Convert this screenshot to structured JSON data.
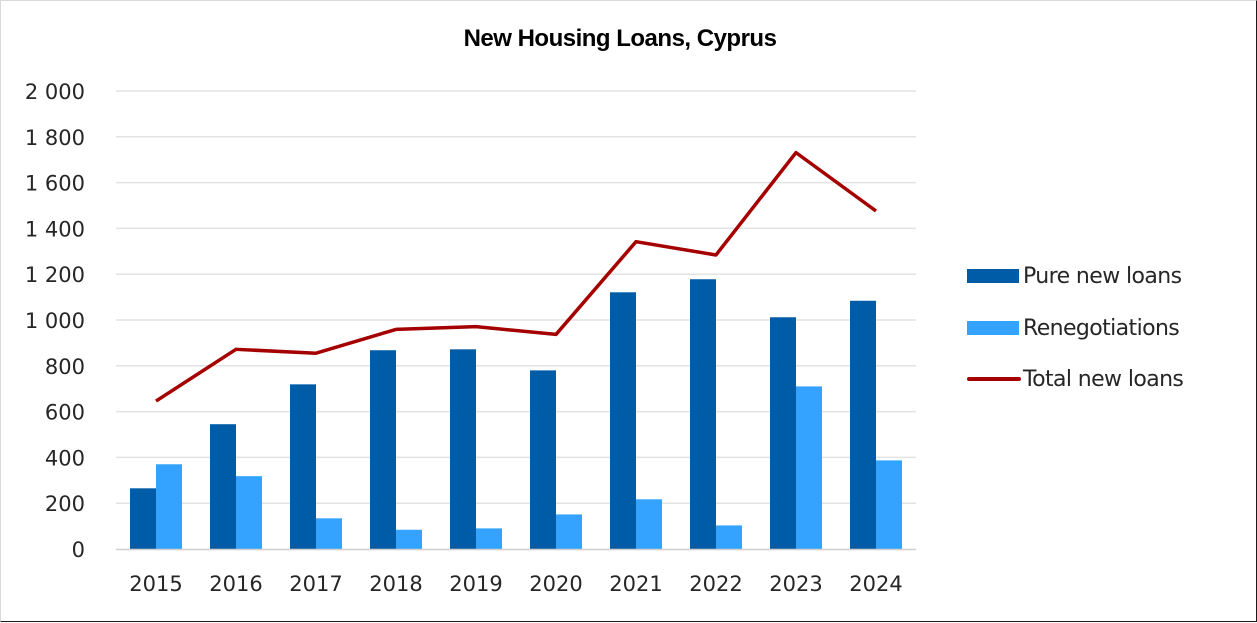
{
  "chart_data": {
    "type": "bar",
    "title": "New Housing Loans, Cyprus",
    "xlabel": "",
    "ylabel": "",
    "ylim": [
      0,
      2000
    ],
    "yticks": [
      0,
      200,
      400,
      600,
      800,
      1000,
      1200,
      1400,
      1600,
      1800,
      2000
    ],
    "ytick_labels": [
      "0",
      "200",
      "400",
      "600",
      "800",
      "1 000",
      "1 200",
      "1 400",
      "1 600",
      "1 800",
      "2 000"
    ],
    "grid": true,
    "legend_position": "right",
    "categories": [
      "2015",
      "2016",
      "2017",
      "2018",
      "2019",
      "2020",
      "2021",
      "2022",
      "2023",
      "2024"
    ],
    "series": [
      {
        "name": "Pure new loans",
        "type": "bar",
        "color": "#005ca6",
        "values": [
          265,
          545,
          719,
          868,
          872,
          780,
          1121,
          1178,
          1012,
          1084
        ]
      },
      {
        "name": "Renegotiations",
        "type": "bar",
        "color": "#33a3ff",
        "values": [
          370,
          318,
          134,
          84,
          90,
          151,
          217,
          103,
          710,
          387
        ]
      },
      {
        "name": "Total new loans",
        "type": "line",
        "color": "#a50000",
        "values": [
          646,
          872,
          855,
          959,
          971,
          937,
          1342,
          1284,
          1731,
          1476
        ]
      }
    ]
  },
  "legend": {
    "items": [
      {
        "label": "Pure new loans",
        "color": "#005ca6"
      },
      {
        "label": "Renegotiations",
        "color": "#33a3ff"
      },
      {
        "label": "Total new loans",
        "color": "#a50000"
      }
    ]
  }
}
